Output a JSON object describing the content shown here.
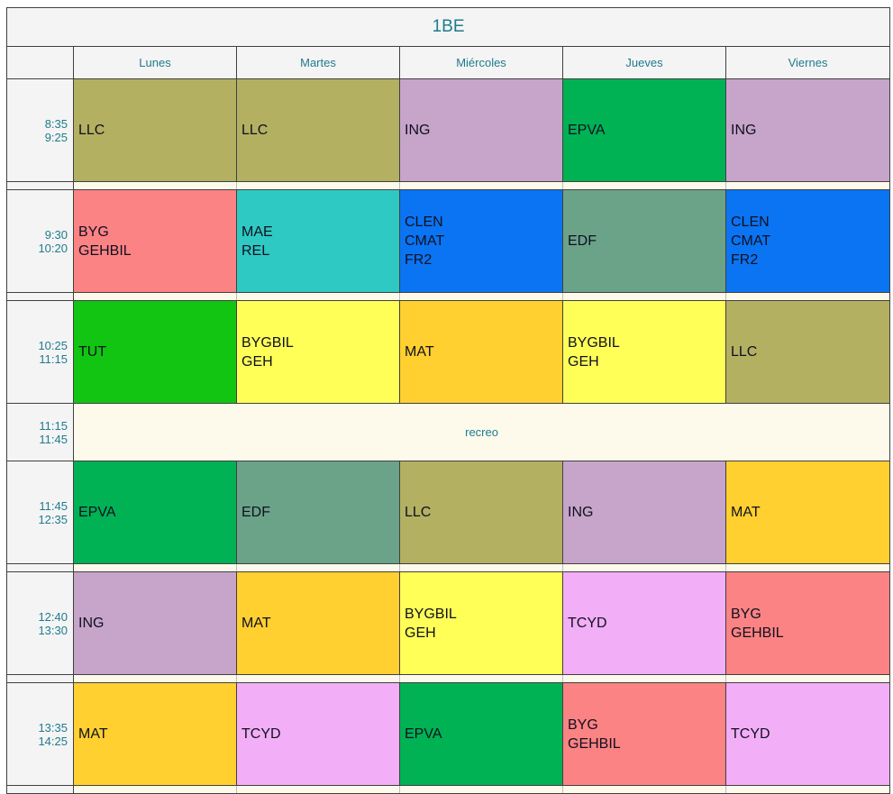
{
  "title": "1BE",
  "days": [
    "Lunes",
    "Martes",
    "Miércoles",
    "Jueves",
    "Viernes"
  ],
  "theme": {
    "heading_text": "#1e7b8e",
    "cell_text": "#101020",
    "grid_line": "#404040",
    "light_line": "#bdbdbd",
    "header_bg": "#f4f4f4",
    "break_bg": "#fdfaec"
  },
  "subject_colors": {
    "LLC": "#b3b062",
    "ING": "#c7a4ca",
    "EPVA": "#00b254",
    "BYG_GEHBIL": "#fb8383",
    "MAE_REL": "#2fc9c3",
    "CLEN_CMAT_FR2": "#0a74f2",
    "EDF": "#6ba389",
    "TUT": "#12c512",
    "BYGBIL_GEH": "#ffff58",
    "MAT": "#ffd02f",
    "TCYD": "#f2aef6"
  },
  "rows": [
    {
      "type": "class",
      "start": "8:35",
      "end": "9:25",
      "sep_after": true,
      "cells": [
        {
          "text": "LLC",
          "color": "#b3b062"
        },
        {
          "text": "LLC",
          "color": "#b3b062"
        },
        {
          "text": "ING",
          "color": "#c7a4ca"
        },
        {
          "text": "EPVA",
          "color": "#00b254"
        },
        {
          "text": "ING",
          "color": "#c7a4ca"
        }
      ]
    },
    {
      "type": "class",
      "start": "9:30",
      "end": "10:20",
      "sep_after": true,
      "cells": [
        {
          "text": "BYG\nGEHBIL",
          "color": "#fb8383"
        },
        {
          "text": "MAE\nREL",
          "color": "#2fc9c3"
        },
        {
          "text": "CLEN\nCMAT\nFR2",
          "color": "#0a74f2"
        },
        {
          "text": "EDF",
          "color": "#6ba389"
        },
        {
          "text": "CLEN\nCMAT\nFR2",
          "color": "#0a74f2"
        }
      ]
    },
    {
      "type": "class",
      "start": "10:25",
      "end": "11:15",
      "sep_after": false,
      "cells": [
        {
          "text": "TUT",
          "color": "#12c512"
        },
        {
          "text": "BYGBIL\nGEH",
          "color": "#ffff58"
        },
        {
          "text": "MAT",
          "color": "#ffd02f"
        },
        {
          "text": "BYGBIL\nGEH",
          "color": "#ffff58"
        },
        {
          "text": "LLC",
          "color": "#b3b062"
        }
      ]
    },
    {
      "type": "break",
      "start": "11:15",
      "end": "11:45",
      "label": "recreo",
      "sep_after": false
    },
    {
      "type": "class",
      "start": "11:45",
      "end": "12:35",
      "sep_after": true,
      "cells": [
        {
          "text": "EPVA",
          "color": "#00b254"
        },
        {
          "text": "EDF",
          "color": "#6ba389"
        },
        {
          "text": "LLC",
          "color": "#b3b062"
        },
        {
          "text": "ING",
          "color": "#c7a4ca"
        },
        {
          "text": "MAT",
          "color": "#ffd02f"
        }
      ]
    },
    {
      "type": "class",
      "start": "12:40",
      "end": "13:30",
      "sep_after": true,
      "cells": [
        {
          "text": "ING",
          "color": "#c7a4ca"
        },
        {
          "text": "MAT",
          "color": "#ffd02f"
        },
        {
          "text": "BYGBIL\nGEH",
          "color": "#ffff58"
        },
        {
          "text": "TCYD",
          "color": "#f2aef6"
        },
        {
          "text": "BYG\nGEHBIL",
          "color": "#fb8383"
        }
      ]
    },
    {
      "type": "class",
      "start": "13:35",
      "end": "14:25",
      "sep_after": true,
      "cells": [
        {
          "text": "MAT",
          "color": "#ffd02f"
        },
        {
          "text": "TCYD",
          "color": "#f2aef6"
        },
        {
          "text": "EPVA",
          "color": "#00b254"
        },
        {
          "text": "BYG\nGEHBIL",
          "color": "#fb8383"
        },
        {
          "text": "TCYD",
          "color": "#f2aef6"
        }
      ]
    }
  ]
}
